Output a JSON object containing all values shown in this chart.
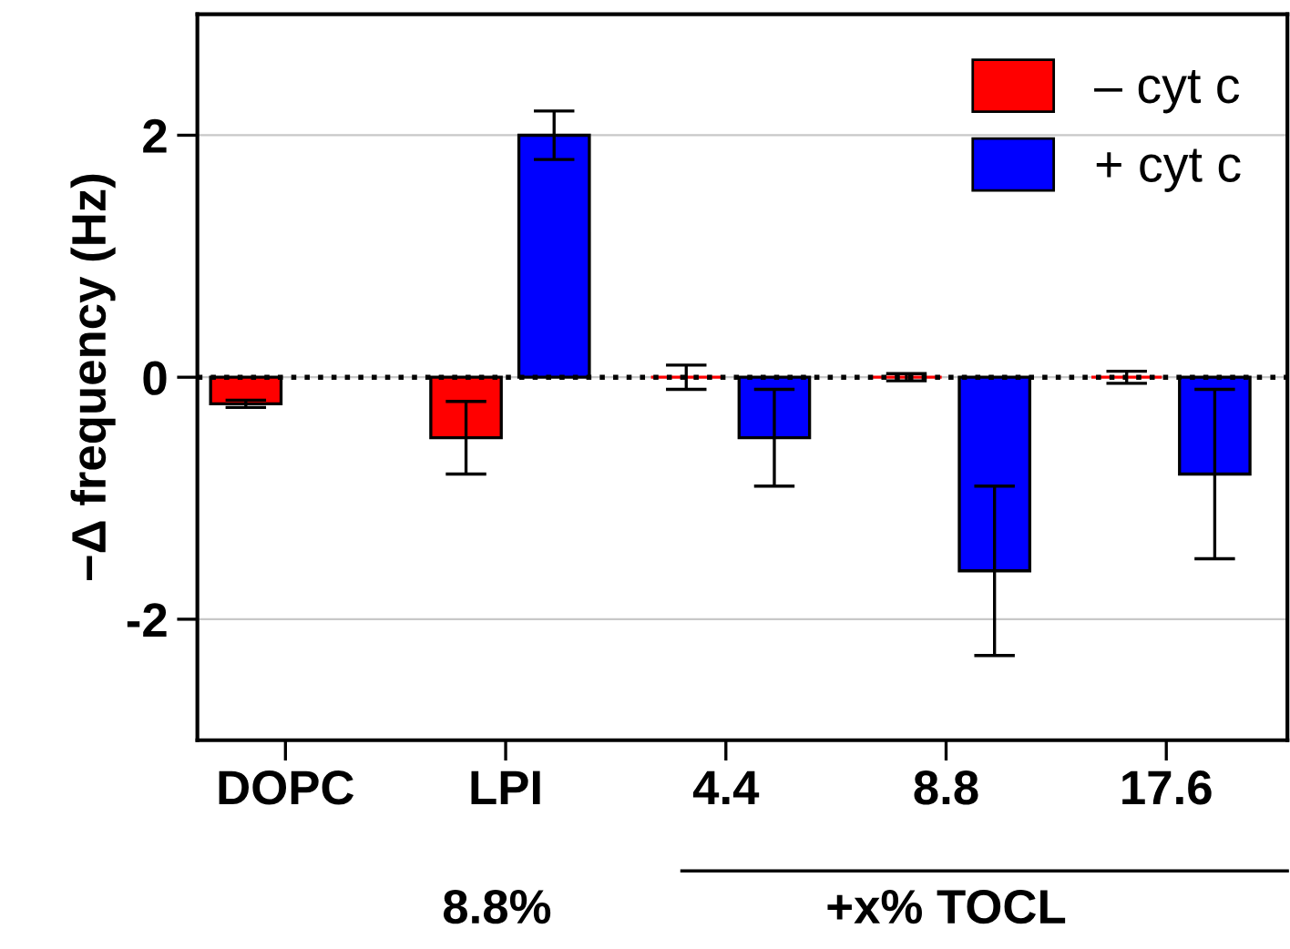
{
  "chart_data": {
    "type": "bar",
    "categories": [
      "DOPC",
      "LPI",
      "4.4",
      "8.8",
      "17.6"
    ],
    "ylabel": "−Δ frequency (Hz)",
    "series": [
      {
        "name": "– cyt c",
        "color": "#ff0000",
        "values": [
          -0.22,
          -0.5,
          0,
          0,
          0
        ],
        "errors": [
          0.03,
          0.3,
          0.1,
          0.03,
          0.05
        ]
      },
      {
        "name": "+ cyt c",
        "color": "#0000ff",
        "values": [
          null,
          2.0,
          -0.5,
          -1.6,
          -0.8
        ],
        "errors": [
          null,
          0.2,
          0.4,
          0.7,
          0.7
        ]
      }
    ],
    "ylim": [
      -3,
      3
    ],
    "yticks": [
      -2,
      0,
      2
    ],
    "grid": "y",
    "legend": "top right",
    "ref_lines": [
      {
        "axis": "y",
        "value": 0,
        "line_style": "dotted"
      }
    ],
    "annotations": [
      "8.8%",
      "+x% TOCL"
    ]
  }
}
